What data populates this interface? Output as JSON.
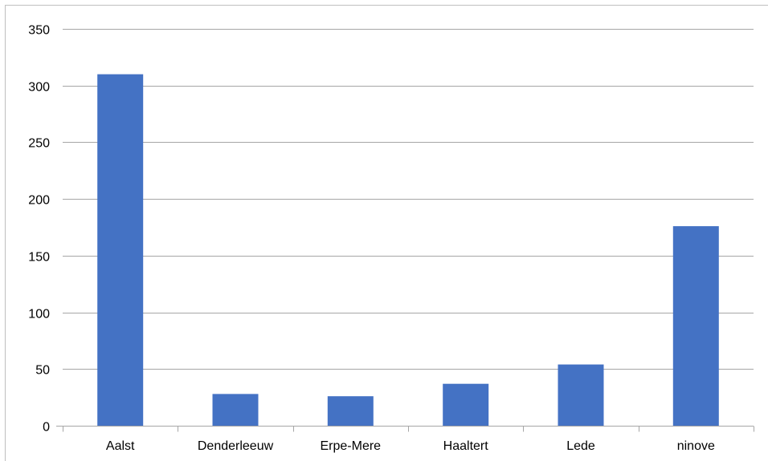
{
  "chart_data": {
    "type": "bar",
    "title": "",
    "xlabel": "",
    "ylabel": "",
    "categories": [
      "Aalst",
      "Denderleeuw",
      "Erpe-Mere",
      "Haaltert",
      "Lede",
      "ninove"
    ],
    "values": [
      310,
      28,
      26,
      37,
      54,
      176
    ],
    "ylim": [
      0,
      350
    ],
    "yticks": [
      0,
      50,
      100,
      150,
      200,
      250,
      300,
      350
    ],
    "grid": true,
    "legend": "none",
    "bar_color": "#4472c4"
  }
}
